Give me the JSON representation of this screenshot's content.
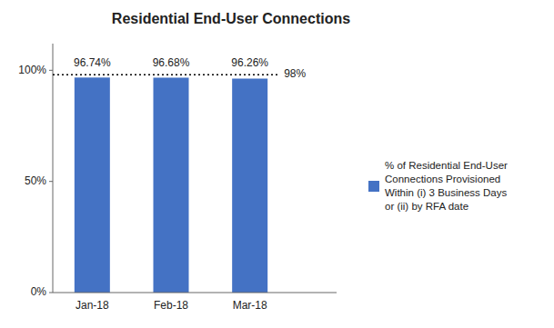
{
  "chart_data": {
    "type": "bar",
    "title": "Residential End-User Connections",
    "categories": [
      "Jan-18",
      "Feb-18",
      "Mar-18"
    ],
    "series": [
      {
        "name": "% of Residential End-User\nConnections Provisioned\nWithin (i) 3 Business Days\nor (ii) by RFA date",
        "color": "#4472C4",
        "values": [
          96.74,
          96.68,
          96.26
        ],
        "value_labels": [
          "96.74%",
          "96.68%",
          "96.26%"
        ]
      }
    ],
    "data_labels": true,
    "ylim": [
      0,
      112
    ],
    "yticks": [
      {
        "value": 0,
        "label": "0%"
      },
      {
        "value": 50,
        "label": "50%"
      },
      {
        "value": 100,
        "label": "100%"
      }
    ],
    "threshold": 98,
    "threshold_label": "98%",
    "grid": false,
    "legend": "right"
  }
}
